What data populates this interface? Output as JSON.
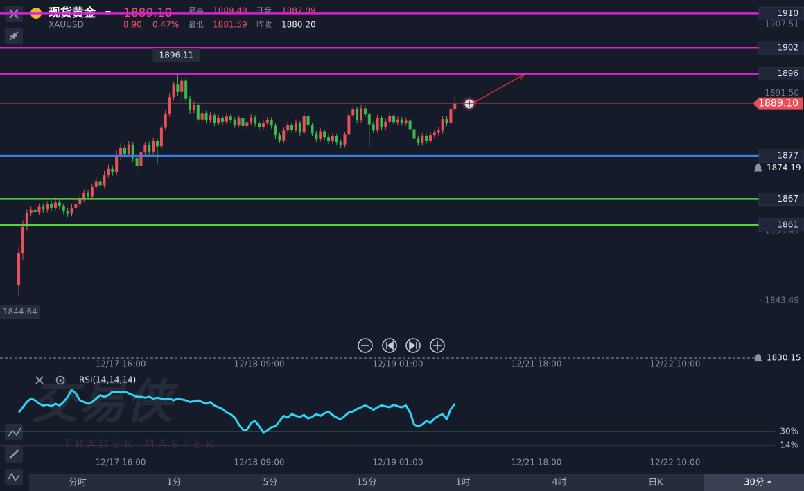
{
  "header": {
    "title": "现货黄金",
    "symbol": "XAUUSD",
    "price": "1889.10",
    "change": "8.90",
    "change_pct": "0.47%",
    "high_label": "最高",
    "high": "1889.48",
    "open_label": "开盘",
    "open": "1882.09",
    "low_label": "最低",
    "low": "1881.59",
    "prev_label": "昨收",
    "prev": "1880.20"
  },
  "watermark": {
    "title": "交易侠",
    "subtitle": "TRADER MASTER"
  },
  "tabs": [
    "分时",
    "1分",
    "5分",
    "15分",
    "1时",
    "4时",
    "日K",
    "30分"
  ],
  "chart_data": {
    "type": "candlestick",
    "up_color": "#e8505b",
    "down_color": "#3dbb4a",
    "xlim": [
      -4.6,
      181.6
    ],
    "xticks": [
      {
        "value": 25,
        "label": "12/17 16:00"
      },
      {
        "value": 59,
        "label": "12/18 09:00"
      },
      {
        "value": 93,
        "label": "12/19 01:00"
      },
      {
        "value": 127,
        "label": "12/21 18:00"
      },
      {
        "value": 161,
        "label": "12/22 10:00"
      }
    ],
    "ylim": [
      1830,
      1913.1
    ],
    "yticks": [
      1907.51,
      {
        "value": 1891.5,
        "label": "1891.50"
      },
      1859.49,
      1843.49
    ],
    "open": [
      1847.0,
      1854.5,
      1860.5,
      1863.8,
      1864.5,
      1864.0,
      1865.2,
      1864.6,
      1865.8,
      1865.0,
      1866.2,
      1865.4,
      1864.2,
      1863.6,
      1865.0,
      1865.8,
      1867.0,
      1868.4,
      1867.6,
      1869.8,
      1871.0,
      1870.2,
      1872.6,
      1874.0,
      1873.2,
      1876.8,
      1878.9,
      1877.5,
      1879.6,
      1876.5,
      1874.6,
      1877.8,
      1879.5,
      1878.0,
      1880.4,
      1879.2,
      1883.5,
      1886.8,
      1890.6,
      1893.5,
      1891.8,
      1894.4,
      1890.2,
      1887.6,
      1888.8,
      1885.4,
      1886.9,
      1885.2,
      1886.4,
      1884.6,
      1885.8,
      1884.9,
      1886.1,
      1885.3,
      1884.2,
      1885.7,
      1883.9,
      1884.8,
      1885.9,
      1884.5,
      1883.6,
      1884.7,
      1885.3,
      1884.0,
      1881.8,
      1880.6,
      1882.9,
      1884.1,
      1883.0,
      1884.6,
      1882.4,
      1886.3,
      1884.1,
      1882.2,
      1881.0,
      1882.7,
      1881.3,
      1880.4,
      1881.6,
      1880.2,
      1879.6,
      1881.9,
      1886.4,
      1887.8,
      1885.2,
      1888.0,
      1886.6,
      1884.3,
      1883.0,
      1885.7,
      1883.6,
      1884.9,
      1886.2,
      1884.8,
      1885.4,
      1884.7,
      1885.1,
      1883.2,
      1881.1,
      1880.0,
      1881.6,
      1880.5,
      1881.8,
      1882.4,
      1882.9,
      1885.5,
      1884.6,
      1887.8
    ],
    "high": [
      1856.0,
      1862.0,
      1864.6,
      1865.4,
      1865.3,
      1866.0,
      1866.0,
      1866.5,
      1866.6,
      1867.5,
      1866.9,
      1866.0,
      1865.0,
      1865.8,
      1866.7,
      1868.0,
      1869.2,
      1869.1,
      1870.6,
      1872.0,
      1871.8,
      1873.5,
      1875.0,
      1874.8,
      1878.2,
      1880.0,
      1879.6,
      1880.4,
      1880.2,
      1877.2,
      1878.6,
      1880.2,
      1880.3,
      1881.2,
      1881.1,
      1884.3,
      1887.6,
      1891.6,
      1894.2,
      1896.11,
      1895.0,
      1894.9,
      1891.0,
      1889.6,
      1889.3,
      1887.7,
      1887.5,
      1887.1,
      1886.9,
      1886.5,
      1886.4,
      1886.9,
      1886.8,
      1885.9,
      1886.4,
      1886.1,
      1885.5,
      1886.7,
      1886.4,
      1885.0,
      1885.4,
      1886.0,
      1885.9,
      1884.5,
      1882.4,
      1883.7,
      1884.9,
      1884.8,
      1885.4,
      1885.0,
      1887.2,
      1886.9,
      1884.6,
      1882.8,
      1883.5,
      1883.2,
      1881.9,
      1882.3,
      1882.1,
      1880.8,
      1882.6,
      1887.6,
      1888.6,
      1888.4,
      1888.9,
      1888.7,
      1887.0,
      1884.9,
      1886.5,
      1886.2,
      1885.6,
      1887.0,
      1886.8,
      1886.1,
      1886.0,
      1885.8,
      1885.6,
      1883.7,
      1881.7,
      1882.3,
      1882.2,
      1882.5,
      1883.1,
      1883.6,
      1886.3,
      1886.2,
      1888.6,
      1890.9
    ],
    "low": [
      1844.64,
      1853.0,
      1859.8,
      1863.0,
      1863.2,
      1863.3,
      1863.9,
      1863.9,
      1864.3,
      1864.4,
      1864.6,
      1863.5,
      1862.8,
      1863.0,
      1864.3,
      1865.1,
      1866.4,
      1866.9,
      1867.0,
      1869.1,
      1869.4,
      1869.6,
      1871.9,
      1872.4,
      1872.6,
      1876.0,
      1876.6,
      1876.9,
      1875.6,
      1872.8,
      1873.9,
      1877.0,
      1877.2,
      1877.3,
      1875.0,
      1878.6,
      1882.9,
      1886.0,
      1889.8,
      1890.9,
      1889.6,
      1889.5,
      1886.8,
      1886.9,
      1884.6,
      1884.8,
      1884.5,
      1884.6,
      1883.9,
      1884.0,
      1884.2,
      1884.3,
      1884.6,
      1883.5,
      1883.6,
      1883.2,
      1883.2,
      1884.2,
      1883.8,
      1882.9,
      1883.0,
      1884.0,
      1883.3,
      1881.0,
      1879.9,
      1880.0,
      1882.2,
      1882.3,
      1882.4,
      1881.7,
      1881.8,
      1883.4,
      1881.5,
      1880.2,
      1880.3,
      1880.6,
      1879.7,
      1879.8,
      1879.5,
      1878.9,
      1879.0,
      1881.2,
      1885.7,
      1884.5,
      1884.6,
      1885.9,
      1879.2,
      1882.3,
      1882.4,
      1882.9,
      1883.0,
      1884.3,
      1884.1,
      1884.2,
      1884.0,
      1884.0,
      1882.5,
      1880.4,
      1879.3,
      1879.4,
      1879.8,
      1879.9,
      1881.1,
      1881.7,
      1882.2,
      1883.9,
      1883.9,
      1887.1
    ],
    "close": [
      1854.5,
      1860.5,
      1863.8,
      1864.5,
      1864.0,
      1865.2,
      1864.6,
      1865.8,
      1865.0,
      1866.2,
      1865.4,
      1864.2,
      1863.6,
      1865.0,
      1865.8,
      1867.0,
      1868.4,
      1867.6,
      1869.8,
      1871.0,
      1870.2,
      1872.6,
      1874.0,
      1873.2,
      1876.8,
      1878.9,
      1877.5,
      1879.6,
      1876.5,
      1874.6,
      1877.8,
      1879.5,
      1878.0,
      1880.4,
      1879.2,
      1883.5,
      1886.8,
      1890.6,
      1893.5,
      1891.8,
      1894.4,
      1890.2,
      1887.6,
      1888.8,
      1885.4,
      1886.9,
      1885.2,
      1886.4,
      1884.6,
      1885.8,
      1884.9,
      1886.1,
      1885.3,
      1884.2,
      1885.7,
      1883.9,
      1884.8,
      1885.9,
      1884.5,
      1883.6,
      1884.7,
      1885.3,
      1884.0,
      1881.8,
      1880.6,
      1882.9,
      1884.1,
      1883.0,
      1884.6,
      1882.4,
      1886.3,
      1884.1,
      1882.2,
      1881.0,
      1882.7,
      1881.3,
      1880.4,
      1881.6,
      1880.2,
      1879.6,
      1881.9,
      1886.4,
      1887.8,
      1885.2,
      1888.0,
      1886.6,
      1884.3,
      1883.0,
      1885.7,
      1883.6,
      1884.9,
      1886.2,
      1884.8,
      1885.4,
      1884.7,
      1885.1,
      1883.2,
      1881.1,
      1880.0,
      1881.6,
      1880.5,
      1881.8,
      1882.4,
      1882.9,
      1885.5,
      1884.6,
      1887.8,
      1889.1
    ],
    "max_index": 39,
    "min_index": 0,
    "levels": [
      {
        "value": 1910,
        "color": "#dc1fdc"
      },
      {
        "value": 1902,
        "color": "#dc1fdc"
      },
      {
        "value": 1896,
        "color": "#dc1fdc"
      },
      {
        "value": 1877,
        "color": "#3b7de0"
      },
      {
        "value": 1867,
        "color": "#52d63c"
      },
      {
        "value": 1861,
        "color": "#52d63c"
      }
    ],
    "alerts": [
      1874.19,
      1830.15
    ],
    "last_price": {
      "value": 1889.1,
      "label": "1889.10"
    },
    "rsi": {
      "name": "RSI(14,14,14)",
      "color": "#2ed3f2",
      "ylim": [
        0,
        100
      ],
      "yticks": [
        {
          "value": 30,
          "label": "30%"
        },
        {
          "value": 14,
          "label": "14%"
        }
      ],
      "values": [
        52,
        58,
        64,
        68,
        66,
        62,
        60,
        61,
        59,
        62,
        60,
        64,
        70,
        78,
        74,
        66,
        64,
        62,
        64,
        68,
        72,
        70,
        72,
        76,
        76,
        75,
        76,
        74,
        72,
        70,
        70,
        69,
        70,
        68,
        69,
        68,
        67,
        68,
        66,
        68,
        67,
        66,
        64,
        65,
        66,
        64,
        62,
        64,
        60,
        58,
        56,
        52,
        50,
        46,
        38,
        32,
        32,
        40,
        42,
        36,
        29,
        31,
        35,
        36,
        42,
        48,
        46,
        50,
        48,
        47,
        49,
        45,
        47,
        50,
        48,
        51,
        53,
        49,
        46,
        44,
        48,
        52,
        53,
        56,
        58,
        60,
        58,
        55,
        58,
        60,
        59,
        58,
        61,
        59,
        58,
        60,
        52,
        38,
        36,
        38,
        42,
        40,
        45,
        48,
        50,
        44,
        56,
        62
      ]
    }
  }
}
